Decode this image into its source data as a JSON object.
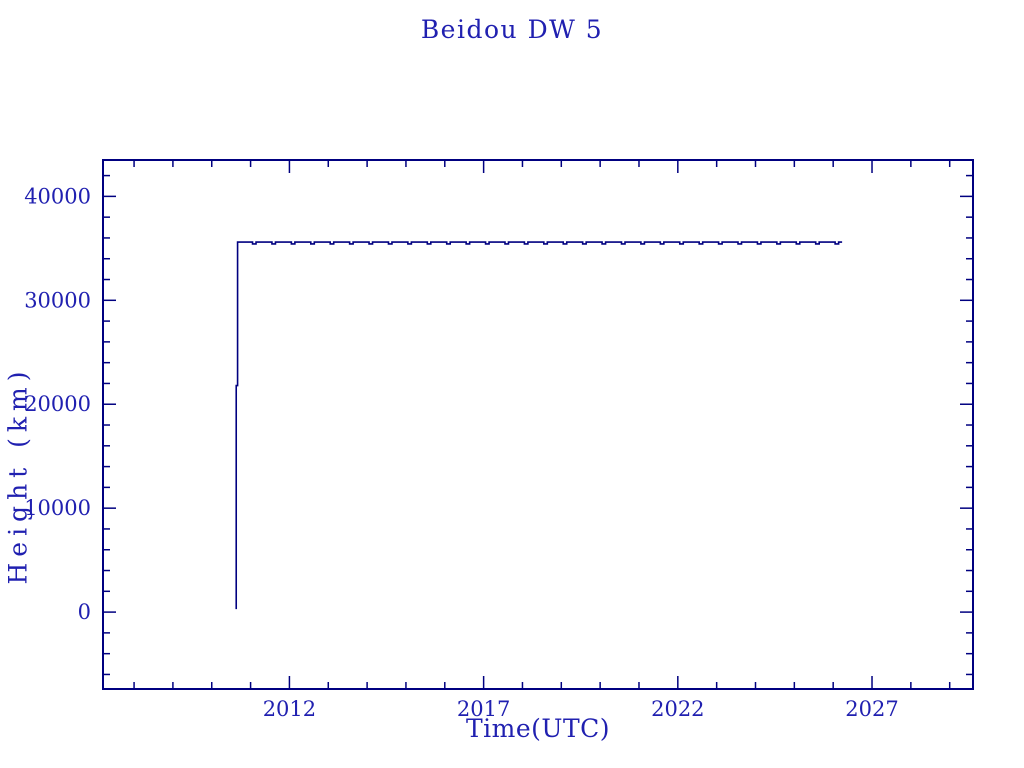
{
  "chart_data": {
    "type": "line",
    "title": "Beidou DW 5",
    "xlabel": "Time(UTC)",
    "ylabel": "Height (km)",
    "xlim": [
      2007.2,
      2029.6
    ],
    "ylim": [
      -7400,
      43500
    ],
    "x_major_ticks": [
      2012,
      2017,
      2022,
      2027
    ],
    "x_minor_step_years": 1,
    "y_major_ticks": [
      0,
      10000,
      20000,
      30000,
      40000
    ],
    "y_minor_step_km": 2000,
    "grid": false,
    "legend": "none",
    "colors": {
      "background": "#ffffff",
      "axis": "#000080",
      "text": "#2020b0",
      "line": "#000080"
    },
    "series": [
      {
        "name": "Beidou DW 5 orbital height",
        "profile": {
          "launch_year": 2010.63,
          "launch_height_km": 290,
          "ascent_step_height_km": 21800,
          "ascent_step_year": 2010.665,
          "geo_start_year": 2010.665,
          "geo_end_year": 2026.23,
          "geo_height_km": 35600,
          "dip_start_year": 2011.05,
          "dip_period_years": 0.5,
          "dip_width_years": 0.09,
          "dip_depth_km": 180
        }
      }
    ]
  }
}
